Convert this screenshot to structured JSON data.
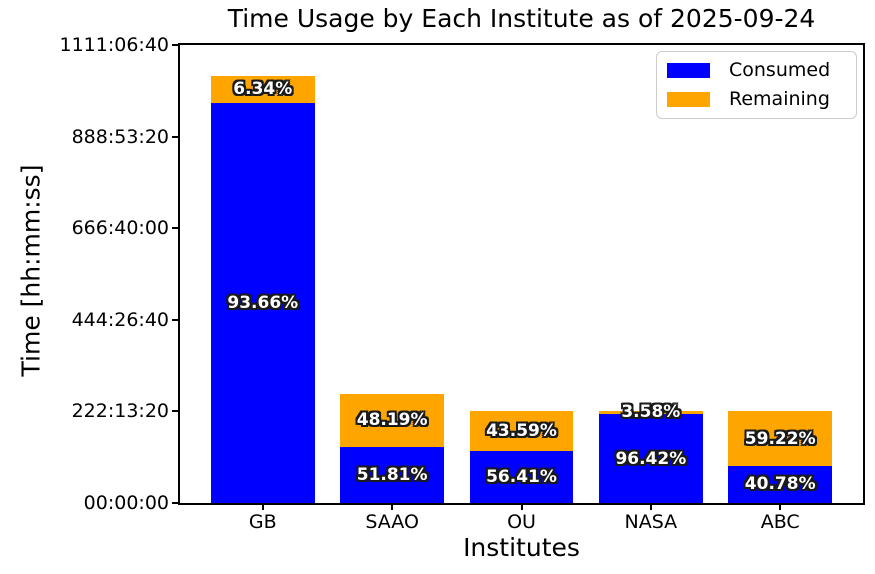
{
  "window": {
    "background": "#ffffff"
  },
  "chart_data": {
    "type": "bar",
    "stacked": true,
    "title": "Time Usage by Each Institute as of 2025-09-24",
    "xlabel": "Institutes",
    "ylabel": "Time [hh:mm:ss]",
    "categories": [
      "GB",
      "SAAO",
      "OU",
      "NASA",
      "ABC"
    ],
    "series": [
      {
        "name": "Consumed",
        "color": "#0000ff",
        "values_seconds": [
          3493518,
          492195,
          451280,
          776181,
          326240
        ],
        "pct_labels": [
          "93.66%",
          "51.81%",
          "56.41%",
          "96.42%",
          "40.78%"
        ]
      },
      {
        "name": "Remaining",
        "color": "#ffa500",
        "values_seconds": [
          236482,
          457805,
          348720,
          28819,
          473760
        ],
        "pct_labels": [
          "6.34%",
          "48.19%",
          "43.59%",
          "3.58%",
          "59.22%"
        ]
      }
    ],
    "totals_seconds": [
      3730000,
      950000,
      800000,
      805000,
      800000
    ],
    "ylim": [
      0,
      4000000
    ],
    "xlim": [
      -0.64,
      4.64
    ],
    "bar_width": 0.8,
    "yticks": [
      {
        "value": 0,
        "label": "00:00:00"
      },
      {
        "value": 800000,
        "label": "222:13:20"
      },
      {
        "value": 1600000,
        "label": "444:26:40"
      },
      {
        "value": 2400000,
        "label": "666:40:00"
      },
      {
        "value": 3200000,
        "label": "888:53:20"
      },
      {
        "value": 4000000,
        "label": "1111:06:40"
      }
    ],
    "grid": false,
    "legend": {
      "position": "upper right",
      "entries": [
        {
          "label": "Consumed",
          "color": "#0000ff"
        },
        {
          "label": "Remaining",
          "color": "#ffa500"
        }
      ]
    },
    "bar_label_style": {
      "fill": "#ffffff",
      "outline": "#000000"
    }
  }
}
